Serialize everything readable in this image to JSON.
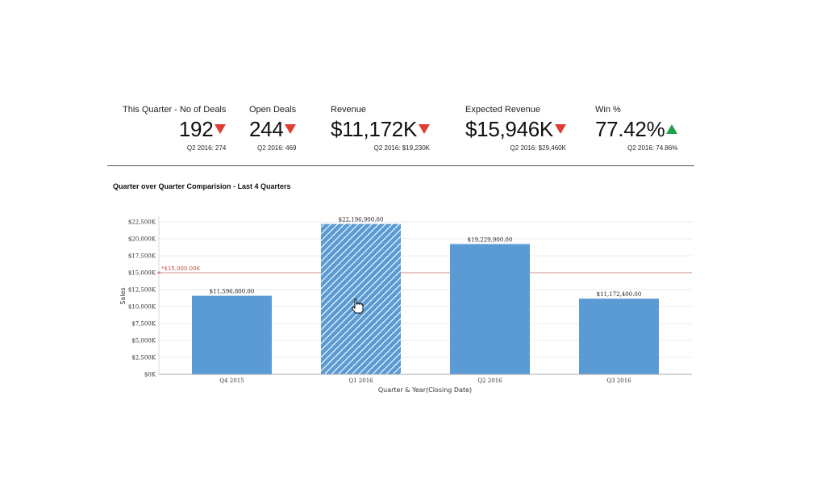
{
  "kpis": [
    {
      "label": "This Quarter - No of Deals",
      "value": "192",
      "trend": "down",
      "previous": "Q2 2016: 274"
    },
    {
      "label": "Open Deals",
      "value": "244",
      "trend": "down",
      "previous": "Q2 2016: 469"
    },
    {
      "label": "Revenue",
      "value": "$11,172K",
      "trend": "down",
      "previous": "Q2 2016: $19,230K"
    },
    {
      "label": "Expected Revenue",
      "value": "$15,946K",
      "trend": "down",
      "previous": "Q2 2016: $29,460K"
    },
    {
      "label": "Win %",
      "value": "77.42%",
      "trend": "up",
      "previous": "Q2 2016: 74.86%"
    }
  ],
  "colors": {
    "down": "#e03c31",
    "up": "#1fa34a",
    "bar": "#5b9bd5",
    "reference": "#c0504d"
  },
  "chart_data": {
    "type": "bar",
    "title": "Quarter over Quarter Comparision - Last 4 Quarters",
    "xlabel": "Quarter & Year(Closing Date)",
    "ylabel": "Sales",
    "categories": [
      "Q4 2015",
      "Q1 2016",
      "Q2 2016",
      "Q3 2016"
    ],
    "values": [
      11596800,
      22196900,
      19229900,
      11172400
    ],
    "data_labels": [
      "$11,596,800.00",
      "$22,196,900.00",
      "$19,229,900.00",
      "$11,172,400.00"
    ],
    "highlighted_index": 1,
    "ylim": [
      0,
      22500000
    ],
    "yticks": [
      0,
      2500000,
      5000000,
      7500000,
      10000000,
      12500000,
      15000000,
      17500000,
      20000000,
      22500000
    ],
    "ytick_labels": [
      "$0K",
      "$2,500K",
      "$5,000K",
      "$7,500K",
      "$10,000K",
      "$12,500K",
      "$15,000K",
      "$17,500K",
      "$20,000K",
      "$22,500K"
    ],
    "reference_line": {
      "value": 15000000,
      "label": "*$15,000.00K"
    },
    "grid": true,
    "legend": "none"
  }
}
